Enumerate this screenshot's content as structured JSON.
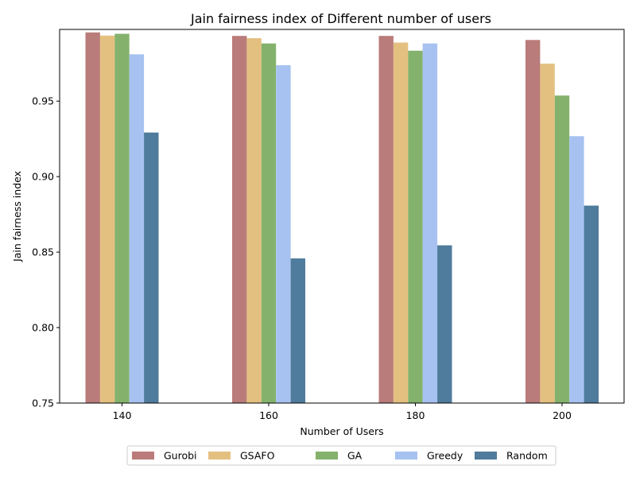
{
  "chart_data": {
    "type": "bar",
    "title": "Jain fairness index of Different number of users",
    "xlabel": "Number of Users",
    "ylabel": "Jain fairness index",
    "categories": [
      "140",
      "160",
      "180",
      "200"
    ],
    "ylim": [
      0.75,
      0.9975
    ],
    "yticks": [
      "0.75",
      "0.80",
      "0.85",
      "0.90",
      "0.95"
    ],
    "grid": false,
    "legend_position": "bottom-center",
    "series": [
      {
        "name": "Gurobi",
        "color": "#b97c7a",
        "values": [
          0.9955,
          0.9932,
          0.9932,
          0.9905
        ]
      },
      {
        "name": "GSAFO",
        "color": "#e4c080",
        "values": [
          0.9934,
          0.9917,
          0.9888,
          0.9748
        ]
      },
      {
        "name": "GA",
        "color": "#84b26d",
        "values": [
          0.9946,
          0.9882,
          0.9834,
          0.9537
        ]
      },
      {
        "name": "Greedy",
        "color": "#a7c2f0",
        "values": [
          0.981,
          0.9738,
          0.9882,
          0.9268
        ]
      },
      {
        "name": "Random",
        "color": "#4f7b9c",
        "values": [
          0.9292,
          0.8458,
          0.8545,
          0.8808
        ]
      }
    ]
  }
}
